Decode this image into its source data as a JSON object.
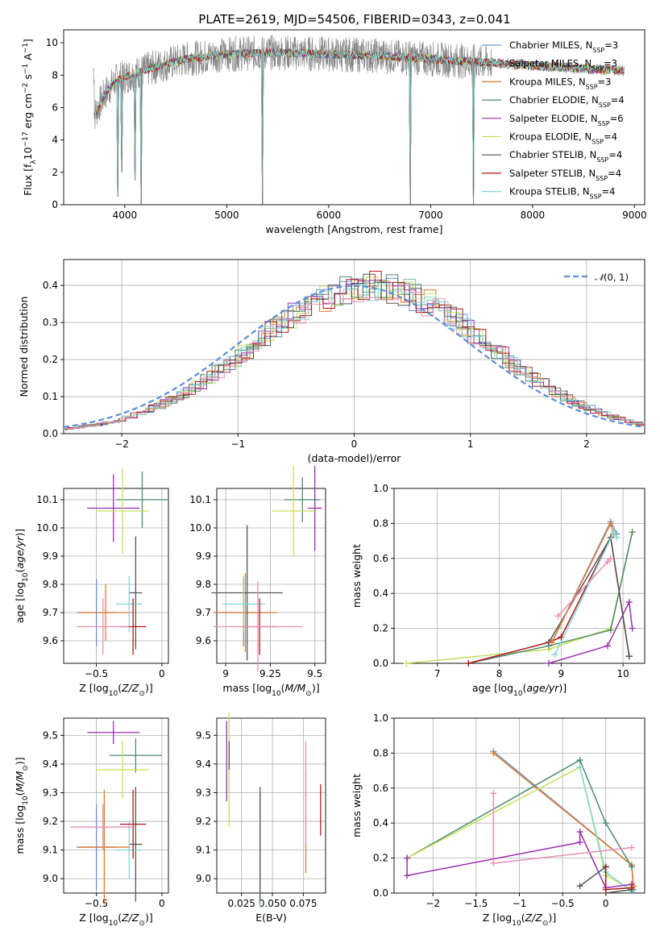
{
  "figure": {
    "title": "PLATE=2619, MJD=54506, FIBERID=0343, z=0.041"
  },
  "series_colors": {
    "Chabrier MILES": "#6e94d8",
    "Salpeter MILES": "#7dbfa6",
    "Kroupa MILES": "#e07b2a",
    "Chabrier ELODIE": "#4f8a6e",
    "Salpeter ELODIE": "#9a2fb0",
    "Kroupa ELODIE": "#c6e05a",
    "Chabrier STELIB": "#555555",
    "Salpeter STELIB": "#b01a1a",
    "Kroupa STELIB": "#7fd8d8",
    "extra": "#e88fb8",
    "gaussian": "#5b8fd6",
    "data_spectrum": "#888888"
  },
  "legend_spectrum": [
    {
      "key": "Chabrier MILES",
      "label": "Chabrier MILES, N",
      "sub": "SSP",
      "tail": "=3"
    },
    {
      "key": "Salpeter MILES",
      "label": "Salpeter MILES, N",
      "sub": "SSP",
      "tail": "=3"
    },
    {
      "key": "Kroupa MILES",
      "label": "Kroupa MILES, N",
      "sub": "SSP",
      "tail": "=3"
    },
    {
      "key": "Chabrier ELODIE",
      "label": "Chabrier ELODIE, N",
      "sub": "SSP",
      "tail": "=4"
    },
    {
      "key": "Salpeter ELODIE",
      "label": "Salpeter ELODIE, N",
      "sub": "SSP",
      "tail": "=6"
    },
    {
      "key": "Kroupa ELODIE",
      "label": "Kroupa ELODIE, N",
      "sub": "SSP",
      "tail": "=4"
    },
    {
      "key": "Chabrier STELIB",
      "label": "Chabrier STELIB, N",
      "sub": "SSP",
      "tail": "=4"
    },
    {
      "key": "Salpeter STELIB",
      "label": "Salpeter STELIB, N",
      "sub": "SSP",
      "tail": "=4"
    },
    {
      "key": "Kroupa STELIB",
      "label": "Kroupa STELIB, N",
      "sub": "SSP",
      "tail": "=4"
    }
  ],
  "chart_data": [
    {
      "id": "spectrum",
      "type": "line",
      "xlabel": "wavelength [Angstrom, rest frame]",
      "ylabel": "Flux [f_λ10^-17 erg cm^-2 s^-1 A^-1]",
      "xlim": [
        3400,
        9100
      ],
      "ylim": [
        0,
        10.8
      ],
      "xticks": [
        4000,
        5000,
        6000,
        7000,
        8000,
        9000
      ],
      "yticks": [
        0,
        2,
        4,
        6,
        8,
        10
      ],
      "continuum": [
        [
          3700,
          5.5
        ],
        [
          3800,
          6.8
        ],
        [
          3900,
          7.6
        ],
        [
          4000,
          7.9
        ],
        [
          4100,
          8.1
        ],
        [
          4300,
          8.5
        ],
        [
          4600,
          9.0
        ],
        [
          5000,
          9.3
        ],
        [
          5500,
          9.4
        ],
        [
          6000,
          9.3
        ],
        [
          6500,
          9.2
        ],
        [
          7000,
          9.0
        ],
        [
          7500,
          8.8
        ],
        [
          8000,
          8.6
        ],
        [
          8500,
          8.4
        ],
        [
          8900,
          8.3
        ]
      ],
      "absorption_dips": [
        [
          3933,
          0.5
        ],
        [
          3969,
          2.0
        ],
        [
          4102,
          1.5
        ],
        [
          4161,
          0.0
        ],
        [
          5350,
          0.0
        ],
        [
          6800,
          0.0
        ],
        [
          7420,
          0.0
        ]
      ]
    },
    {
      "id": "residual_histogram",
      "type": "line",
      "xlabel": "(data-model)/error",
      "ylabel": "Normed distribution",
      "xlim": [
        -2.5,
        2.5
      ],
      "ylim": [
        0,
        0.47
      ],
      "xticks": [
        -2,
        -1,
        0,
        1,
        2
      ],
      "yticks": [
        0.0,
        0.1,
        0.2,
        0.3,
        0.4
      ],
      "legend": "$\\mathcal{N}(0,1)$",
      "gaussian": {
        "mu": 0,
        "sigma": 1
      }
    },
    {
      "id": "age_vs_Z",
      "type": "scatter",
      "xlabel": "Z [log10(Z/Z⊙)]",
      "ylabel": "age [log10(age/yr)]",
      "xlim": [
        -0.75,
        0.05
      ],
      "ylim": [
        9.52,
        10.14
      ],
      "xticks": [
        -0.5,
        0.0
      ],
      "yticks": [
        9.6,
        9.7,
        9.8,
        9.9,
        10.0,
        10.1
      ],
      "points": [
        {
          "c": "Chabrier MILES",
          "x": -0.5,
          "y": 9.7,
          "xerr": 0.15,
          "yerr": 0.12
        },
        {
          "c": "Chabrier ELODIE",
          "x": -0.15,
          "y": 10.1,
          "xerr": 0.2,
          "yerr": 0.1
        },
        {
          "c": "Salpeter ELODIE",
          "x": -0.37,
          "y": 10.07,
          "xerr": 0.2,
          "yerr": 0.12
        },
        {
          "c": "Kroupa ELODIE",
          "x": -0.3,
          "y": 10.06,
          "xerr": 0.2,
          "yerr": 0.15
        },
        {
          "c": "Kroupa MILES",
          "x": -0.43,
          "y": 9.7,
          "xerr": 0.2,
          "yerr": 0.1
        },
        {
          "c": "Chabrier STELIB",
          "x": -0.2,
          "y": 9.77,
          "xerr": 0.05,
          "yerr": 0.2
        },
        {
          "c": "Kroupa STELIB",
          "x": -0.25,
          "y": 9.73,
          "xerr": 0.1,
          "yerr": 0.1
        },
        {
          "c": "Salpeter STELIB",
          "x": -0.22,
          "y": 9.65,
          "xerr": 0.1,
          "yerr": 0.1
        },
        {
          "c": "extra",
          "x": -0.45,
          "y": 9.65,
          "xerr": 0.2,
          "yerr": 0.1
        }
      ]
    },
    {
      "id": "age_vs_mass",
      "type": "scatter",
      "xlabel": "mass [log10(M/M⊙)]",
      "ylabel": "",
      "xlim": [
        8.95,
        9.56
      ],
      "ylim": [
        9.52,
        10.14
      ],
      "xticks": [
        9.0,
        9.25,
        9.5
      ],
      "yticks": [
        9.6,
        9.7,
        9.8,
        9.9,
        10.0,
        10.1
      ],
      "points": [
        {
          "c": "Chabrier MILES",
          "x": 9.1,
          "y": 9.7,
          "xerr": 0.15,
          "yerr": 0.12
        },
        {
          "c": "Chabrier ELODIE",
          "x": 9.43,
          "y": 10.1,
          "xerr": 0.1,
          "yerr": 0.08
        },
        {
          "c": "Salpeter ELODIE",
          "x": 9.5,
          "y": 10.07,
          "xerr": 0.04,
          "yerr": 0.15
        },
        {
          "c": "Kroupa ELODIE",
          "x": 9.38,
          "y": 10.06,
          "xerr": 0.12,
          "yerr": 0.16
        },
        {
          "c": "Kroupa MILES",
          "x": 9.11,
          "y": 9.7,
          "xerr": 0.18,
          "yerr": 0.14
        },
        {
          "c": "Chabrier STELIB",
          "x": 9.12,
          "y": 9.77,
          "xerr": 0.2,
          "yerr": 0.24
        },
        {
          "c": "Kroupa STELIB",
          "x": 9.1,
          "y": 9.73,
          "xerr": 0.12,
          "yerr": 0.1
        },
        {
          "c": "Salpeter STELIB",
          "x": 9.19,
          "y": 9.65,
          "xerr": 0.1,
          "yerr": 0.1
        },
        {
          "c": "extra",
          "x": 9.18,
          "y": 9.65,
          "xerr": 0.25,
          "yerr": 0.16
        }
      ]
    },
    {
      "id": "mass_weight_vs_age",
      "type": "line",
      "xlabel": "age [log10(age/yr)]",
      "ylabel": "mass weight",
      "xlim": [
        6.3,
        10.35
      ],
      "ylim": [
        0,
        1.0
      ],
      "xticks": [
        7,
        8,
        9,
        10
      ],
      "yticks": [
        0.0,
        0.2,
        0.4,
        0.6,
        0.8,
        1.0
      ],
      "series": [
        {
          "c": "Kroupa ELODIE",
          "points": [
            [
              6.5,
              0.0
            ],
            [
              8.8,
              0.08
            ],
            [
              9.8,
              0.2
            ],
            [
              10.15,
              0.75
            ]
          ]
        },
        {
          "c": "Chabrier ELODIE",
          "points": [
            [
              7.5,
              0.0
            ],
            [
              8.8,
              0.1
            ],
            [
              9.8,
              0.19
            ],
            [
              10.15,
              0.75
            ]
          ]
        },
        {
          "c": "Salpeter ELODIE",
          "points": [
            [
              8.8,
              0.0
            ],
            [
              9.75,
              0.1
            ],
            [
              10.1,
              0.35
            ],
            [
              10.15,
              0.2
            ]
          ]
        },
        {
          "c": "Salpeter STELIB",
          "points": [
            [
              7.5,
              0.0
            ],
            [
              8.8,
              0.12
            ],
            [
              9.0,
              0.15
            ],
            [
              9.8,
              0.72
            ],
            [
              10.1,
              0.04
            ]
          ]
        },
        {
          "c": "Chabrier STELIB",
          "points": [
            [
              8.8,
              0.12
            ],
            [
              9.8,
              0.72
            ],
            [
              10.1,
              0.04
            ]
          ]
        },
        {
          "c": "Chabrier MILES",
          "points": [
            [
              8.85,
              0.12
            ],
            [
              9.8,
              0.81
            ],
            [
              9.9,
              0.74
            ]
          ]
        },
        {
          "c": "Kroupa MILES",
          "points": [
            [
              8.85,
              0.12
            ],
            [
              9.8,
              0.8
            ],
            [
              9.85,
              0.74
            ]
          ]
        },
        {
          "c": "Kroupa STELIB",
          "points": [
            [
              8.9,
              0.05
            ],
            [
              9.85,
              0.75
            ],
            [
              9.9,
              0.72
            ]
          ]
        },
        {
          "c": "extra",
          "points": [
            [
              8.95,
              0.27
            ],
            [
              9.75,
              0.58
            ],
            [
              9.8,
              0.6
            ]
          ]
        }
      ]
    },
    {
      "id": "mass_vs_Z",
      "type": "scatter",
      "xlabel": "Z [log10(Z/Z⊙)]",
      "ylabel": "mass [log10(M/M⊙)]",
      "xlim": [
        -0.75,
        0.05
      ],
      "ylim": [
        8.95,
        9.56
      ],
      "xticks": [
        -0.5,
        0.0
      ],
      "yticks": [
        9.0,
        9.1,
        9.2,
        9.3,
        9.4,
        9.5
      ],
      "points": [
        {
          "c": "Salpeter ELODIE",
          "x": -0.37,
          "y": 9.51,
          "xerr": 0.2,
          "yerr": 0.04
        },
        {
          "c": "Chabrier ELODIE",
          "x": -0.2,
          "y": 9.43,
          "xerr": 0.2,
          "yerr": 0.06
        },
        {
          "c": "Kroupa ELODIE",
          "x": -0.3,
          "y": 9.38,
          "xerr": 0.2,
          "yerr": 0.1
        },
        {
          "c": "Chabrier MILES",
          "x": -0.5,
          "y": 9.11,
          "xerr": 0.15,
          "yerr": 0.15
        },
        {
          "c": "Kroupa MILES",
          "x": -0.44,
          "y": 9.11,
          "xerr": 0.2,
          "yerr": 0.2
        },
        {
          "c": "Chabrier STELIB",
          "x": -0.2,
          "y": 9.12,
          "xerr": 0.05,
          "yerr": 0.2
        },
        {
          "c": "Kroupa STELIB",
          "x": -0.25,
          "y": 9.1,
          "xerr": 0.1,
          "yerr": 0.1
        },
        {
          "c": "Salpeter STELIB",
          "x": -0.22,
          "y": 9.19,
          "xerr": 0.1,
          "yerr": 0.12
        },
        {
          "c": "extra",
          "x": -0.45,
          "y": 9.18,
          "xerr": 0.25,
          "yerr": 0.08
        }
      ]
    },
    {
      "id": "mass_vs_EBV",
      "type": "scatter",
      "xlabel": "E(B-V)",
      "ylabel": "",
      "xlim": [
        0.005,
        0.093
      ],
      "ylim": [
        8.95,
        9.56
      ],
      "xticks": [
        0.025,
        0.05,
        0.075
      ],
      "xtick_labels": [
        "0.025",
        "0.050",
        "0.075"
      ],
      "yticks": [
        9.0,
        9.1,
        9.2,
        9.3,
        9.4,
        9.5
      ],
      "points": [
        {
          "c": "Salpeter ELODIE",
          "x": 0.013,
          "y": 9.41,
          "yerr": 0.14
        },
        {
          "c": "Kroupa ELODIE",
          "x": 0.015,
          "y": 9.38,
          "yerr": 0.2
        },
        {
          "c": "Chabrier STELIB",
          "x": 0.015,
          "y": 9.43,
          "yerr": 0.05
        },
        {
          "c": "Kroupa STELIB",
          "x": 0.04,
          "y": 9.1,
          "yerr": 0.2
        },
        {
          "c": "Chabrier STELIB",
          "x": 0.04,
          "y": 9.12,
          "yerr": 0.2
        },
        {
          "c": "Kroupa MILES",
          "x": 0.077,
          "y": 9.2,
          "yerr": 0.18
        },
        {
          "c": "extra",
          "x": 0.077,
          "y": 9.3,
          "yerr": 0.18
        },
        {
          "c": "Salpeter STELIB",
          "x": 0.089,
          "y": 9.24,
          "yerr": 0.09
        }
      ]
    },
    {
      "id": "mass_weight_vs_Z",
      "type": "line",
      "xlabel": "Z [log10(Z/Z⊙)]",
      "ylabel": "mass weight",
      "xlim": [
        -2.45,
        0.45
      ],
      "ylim": [
        0,
        1.0
      ],
      "xticks": [
        -2.0,
        -1.5,
        -1.0,
        -0.5,
        0.0
      ],
      "yticks": [
        0.0,
        0.2,
        0.4,
        0.6,
        0.8,
        1.0
      ],
      "series": [
        {
          "c": "Chabrier MILES",
          "points": [
            [
              -1.3,
              0.81
            ],
            [
              0.3,
              0.16
            ],
            [
              0.32,
              0.02
            ]
          ]
        },
        {
          "c": "Kroupa MILES",
          "points": [
            [
              -1.3,
              0.8
            ],
            [
              0.3,
              0.16
            ],
            [
              0.32,
              0.04
            ]
          ]
        },
        {
          "c": "Chabrier ELODIE",
          "points": [
            [
              -2.3,
              0.2
            ],
            [
              -0.3,
              0.76
            ],
            [
              0.0,
              0.4
            ],
            [
              0.3,
              0.15
            ]
          ]
        },
        {
          "c": "Kroupa ELODIE",
          "points": [
            [
              -2.3,
              0.2
            ],
            [
              -0.3,
              0.72
            ],
            [
              0.0,
              0.1
            ],
            [
              0.3,
              0.02
            ]
          ]
        },
        {
          "c": "Kroupa STELIB",
          "points": [
            [
              -0.3,
              0.72
            ],
            [
              0.0,
              0.12
            ],
            [
              0.3,
              0.01
            ]
          ]
        },
        {
          "c": "Salpeter ELODIE",
          "points": [
            [
              -2.3,
              0.2
            ],
            [
              -2.3,
              0.1
            ],
            [
              -0.3,
              0.29
            ],
            [
              -0.3,
              0.35
            ],
            [
              0.0,
              0.03
            ],
            [
              0.3,
              0.05
            ]
          ]
        },
        {
          "c": "Chabrier STELIB",
          "points": [
            [
              -0.3,
              0.04
            ],
            [
              0.0,
              0.15
            ],
            [
              0.0,
              0.0
            ],
            [
              0.3,
              0.02
            ]
          ]
        },
        {
          "c": "Salpeter STELIB",
          "points": [
            [
              0.0,
              0.15
            ],
            [
              0.0,
              0.02
            ],
            [
              0.3,
              0.03
            ]
          ]
        },
        {
          "c": "extra",
          "points": [
            [
              -1.3,
              0.57
            ],
            [
              -1.3,
              0.17
            ],
            [
              0.3,
              0.26
            ]
          ]
        }
      ]
    }
  ]
}
